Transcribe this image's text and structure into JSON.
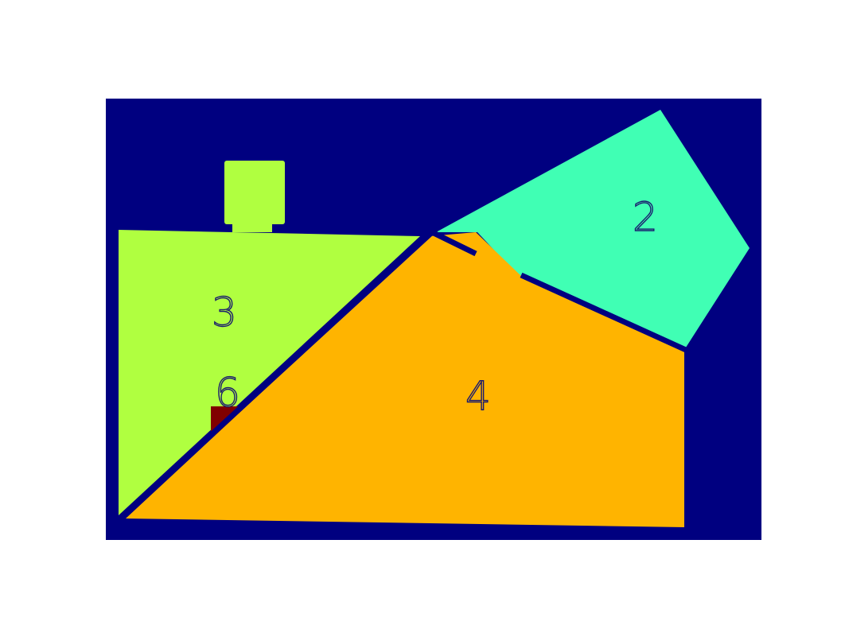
{
  "colors": {
    "background": "#000080",
    "region_2": "#40ffb4",
    "region_3": "#b0ff40",
    "region_4": "#ffb400",
    "region_6": "#800000",
    "label": "#1a1a6e"
  },
  "regions": [
    {
      "id": "region-2",
      "label": "2",
      "color_key": "region_2"
    },
    {
      "id": "region-3",
      "label": "3",
      "color_key": "region_3"
    },
    {
      "id": "region-4",
      "label": "4",
      "color_key": "region_4"
    },
    {
      "id": "region-6",
      "label": "6",
      "color_key": "region_6"
    }
  ]
}
